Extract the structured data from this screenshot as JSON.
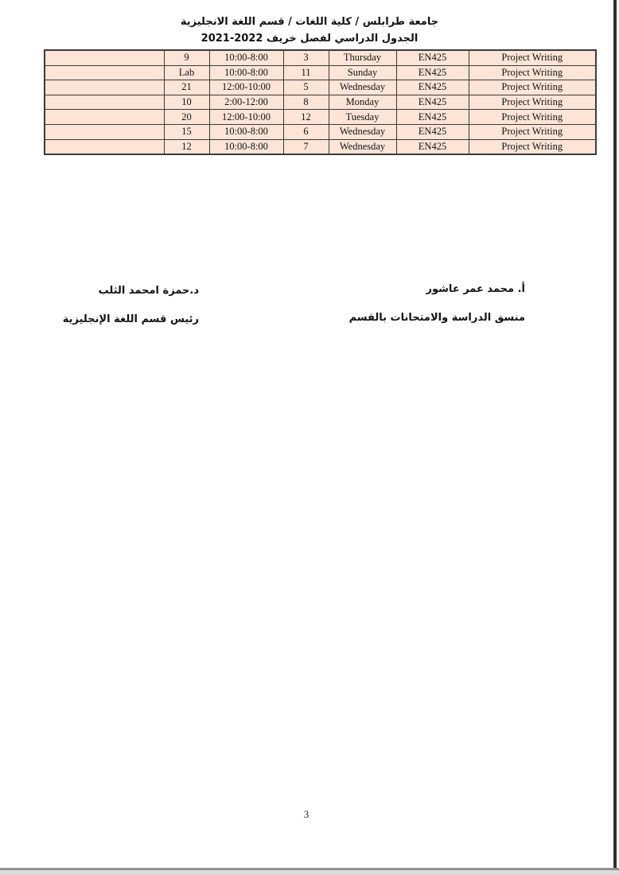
{
  "header": {
    "line1": "جامعة طرابلس / كلية اللغات / قسم اللغة الانجليزية",
    "line2": "الجدول الدراسي لفصل خريف 2022-2021"
  },
  "schedule_table": {
    "course_code": "EN425",
    "course_title": "Project Writing",
    "rows": [
      {
        "cells": [
          "",
          "9",
          "10:00-8:00",
          "3",
          "Thursday",
          "EN425",
          "Project Writing"
        ]
      },
      {
        "cells": [
          "",
          "Lab",
          "10:00-8:00",
          "11",
          "Sunday",
          "EN425",
          "Project Writing"
        ]
      },
      {
        "cells": [
          "",
          "21",
          "12:00-10:00",
          "5",
          "Wednesday",
          "EN425",
          "Project Writing"
        ]
      },
      {
        "cells": [
          "",
          "10",
          "2:00-12:00",
          "8",
          "Monday",
          "EN425",
          "Project Writing"
        ]
      },
      {
        "cells": [
          "",
          "20",
          "12:00-10:00",
          "12",
          "Tuesday",
          "EN425",
          "Project Writing"
        ]
      },
      {
        "cells": [
          "",
          "15",
          "10:00-8:00",
          "6",
          "Wednesday",
          "EN425",
          "Project Writing"
        ]
      },
      {
        "cells": [
          "",
          "12",
          "10:00-8:00",
          "7",
          "Wednesday",
          "EN425",
          "Project Writing"
        ]
      }
    ]
  },
  "signatures": {
    "right": {
      "name": "أ. محمد عمر عاشور",
      "title": "منسق الدراسة والامتحانات بالقسم"
    },
    "left": {
      "name": "د.حمزة امحمد الثلب",
      "title": "رئيس قسم اللغة الإنجليزية"
    }
  },
  "page": {
    "number": "3"
  },
  "colors": {
    "cell_fill": "#fce4d6",
    "table_border": "#3b3b3b",
    "scan_edge_right": "#2f2f2f",
    "scan_edge_bottom": "#8f8f8f"
  }
}
